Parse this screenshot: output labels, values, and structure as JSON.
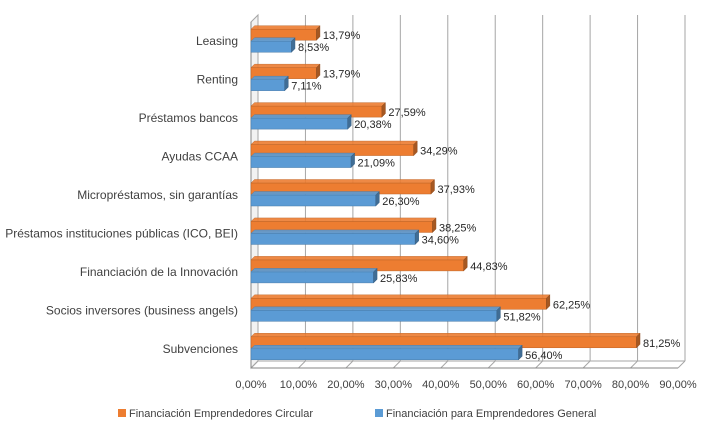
{
  "chart_data": {
    "type": "bar",
    "orientation": "horizontal",
    "style": "3d",
    "title": "",
    "xlabel": "",
    "ylabel": "",
    "xlim": [
      0,
      90
    ],
    "x_ticks": [
      "0,00%",
      "10,00%",
      "20,00%",
      "30,00%",
      "40,00%",
      "50,00%",
      "60,00%",
      "70,00%",
      "80,00%",
      "90,00%"
    ],
    "grid": true,
    "legend_position": "bottom",
    "categories": [
      "Leasing",
      "Renting",
      "Préstamos bancos",
      "Ayudas CCAA",
      "Micropréstamos, sin garantías",
      "Préstamos instituciones públicas (ICO, BEI)",
      "Financiación de la Innovación",
      "Socios inversores (business angels)",
      "Subvenciones"
    ],
    "series": [
      {
        "name": "Financiación Emprendedores Circular",
        "color": "#ed7d31",
        "values": [
          13.79,
          13.79,
          27.59,
          34.29,
          37.93,
          38.25,
          44.83,
          62.25,
          81.25
        ],
        "labels": [
          "13,79%",
          "13,79%",
          "27,59%",
          "34,29%",
          "37,93%",
          "38,25%",
          "44,83%",
          "62,25%",
          "81,25%"
        ]
      },
      {
        "name": "Financiación para Emprendedores General",
        "color": "#5b9bd5",
        "values": [
          8.53,
          7.11,
          20.38,
          21.09,
          26.3,
          34.6,
          25.83,
          51.82,
          56.4
        ],
        "labels": [
          "8,53%",
          "7,11%",
          "20,38%",
          "21,09%",
          "26,30%",
          "34,60%",
          "25,83%",
          "51,82%",
          "56,40%"
        ]
      }
    ]
  }
}
